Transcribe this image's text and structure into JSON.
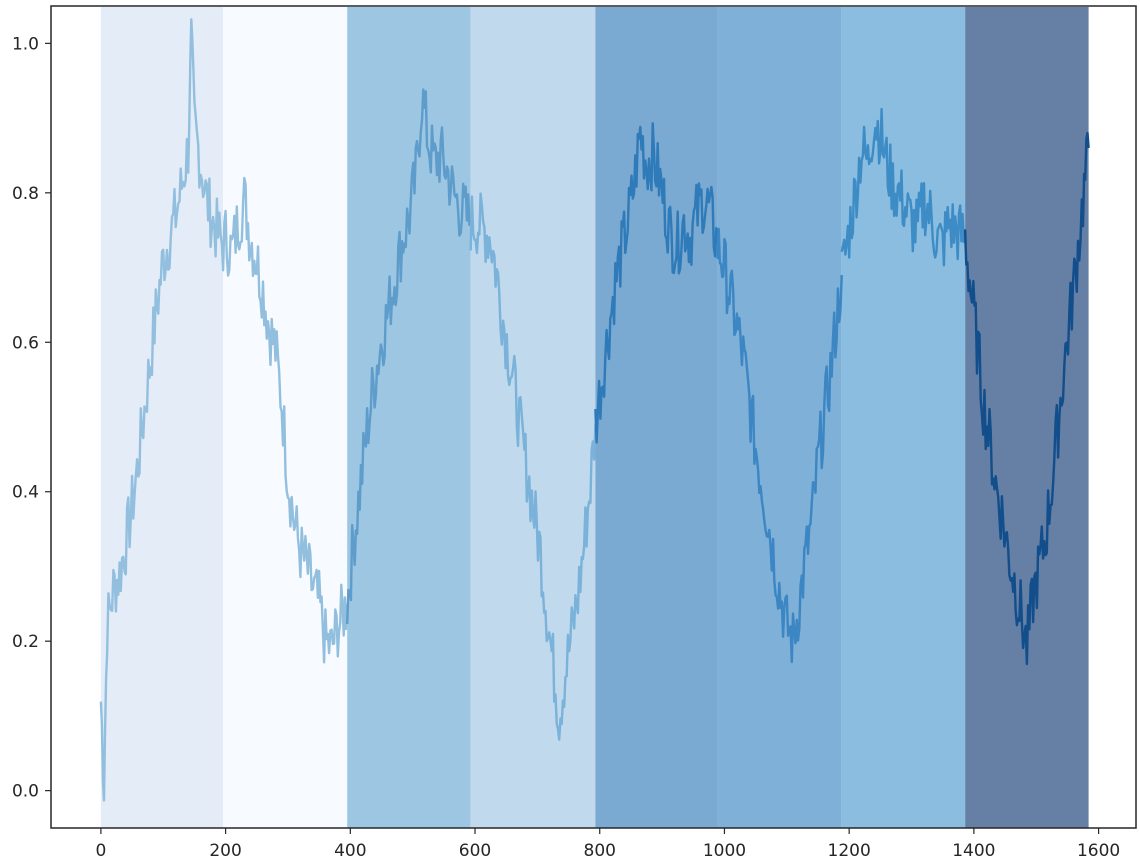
{
  "chart_data": {
    "type": "line",
    "title": "",
    "xlabel": "",
    "ylabel": "",
    "xlim": [
      -80,
      1660
    ],
    "ylim": [
      -0.05,
      1.05
    ],
    "grid": false,
    "legend": "none",
    "x_ticks": [
      0,
      200,
      400,
      600,
      800,
      1000,
      1200,
      1400,
      1600
    ],
    "x_tick_labels": [
      "0",
      "200",
      "400",
      "600",
      "800",
      "1000",
      "1200",
      "1400",
      "1600"
    ],
    "y_ticks": [
      0.0,
      0.2,
      0.4,
      0.6,
      0.8,
      1.0
    ],
    "y_tick_labels": [
      "0.0",
      "0.2",
      "0.4",
      "0.6",
      "0.8",
      "1.0"
    ],
    "bands": [
      {
        "x0": 0,
        "x1": 196,
        "color": "#e4ecf7"
      },
      {
        "x0": 196,
        "x1": 395,
        "color": "#f7fbff"
      },
      {
        "x0": 395,
        "x1": 593,
        "color": "#9cc6e2"
      },
      {
        "x0": 593,
        "x1": 793,
        "color": "#c0d9ed"
      },
      {
        "x0": 793,
        "x1": 989,
        "color": "#7aa9d1"
      },
      {
        "x0": 989,
        "x1": 1188,
        "color": "#7fb0d8"
      },
      {
        "x0": 1188,
        "x1": 1386,
        "color": "#8abde0"
      },
      {
        "x0": 1386,
        "x1": 1584,
        "color": "#667fa4"
      }
    ],
    "series": [
      {
        "color": "#93bfdf",
        "x": [
          0,
          5,
          10,
          20,
          30,
          40,
          50,
          60,
          70,
          80,
          90,
          100,
          110,
          120,
          130,
          140,
          145,
          150,
          160,
          170,
          180,
          190,
          196,
          200,
          210,
          220,
          230,
          240,
          250,
          260,
          270,
          280,
          290,
          300,
          310,
          320,
          330,
          340,
          350,
          360,
          370,
          380,
          395
        ],
        "y": [
          0.12,
          0.01,
          0.22,
          0.27,
          0.29,
          0.33,
          0.38,
          0.44,
          0.51,
          0.58,
          0.65,
          0.71,
          0.74,
          0.77,
          0.81,
          0.86,
          1.0,
          0.89,
          0.84,
          0.79,
          0.76,
          0.74,
          0.73,
          0.74,
          0.72,
          0.76,
          0.79,
          0.74,
          0.71,
          0.67,
          0.62,
          0.59,
          0.52,
          0.42,
          0.36,
          0.32,
          0.3,
          0.27,
          0.25,
          0.2,
          0.19,
          0.22,
          0.25
        ]
      },
      {
        "color": "#5e9ccb",
        "x": [
          395,
          405,
          415,
          425,
          435,
          445,
          455,
          465,
          475,
          485,
          495,
          505,
          515,
          525,
          535,
          545,
          555,
          565,
          575,
          585,
          593
        ],
        "y": [
          0.25,
          0.33,
          0.4,
          0.47,
          0.53,
          0.58,
          0.62,
          0.66,
          0.7,
          0.74,
          0.77,
          0.82,
          0.93,
          0.87,
          0.84,
          0.85,
          0.83,
          0.8,
          0.78,
          0.77,
          0.76
        ]
      },
      {
        "color": "#7ab2d9",
        "x": [
          593,
          605,
          615,
          625,
          635,
          645,
          655,
          665,
          675,
          685,
          695,
          705,
          715,
          725,
          735,
          745,
          755,
          765,
          775,
          785,
          793
        ],
        "y": [
          0.76,
          0.76,
          0.75,
          0.74,
          0.69,
          0.63,
          0.58,
          0.53,
          0.47,
          0.42,
          0.37,
          0.32,
          0.24,
          0.17,
          0.1,
          0.16,
          0.21,
          0.26,
          0.33,
          0.41,
          0.49
        ]
      },
      {
        "color": "#2f7ab9",
        "x": [
          793,
          805,
          815,
          825,
          835,
          845,
          855,
          865,
          875,
          885,
          895,
          905,
          915,
          925,
          935,
          945,
          955,
          965,
          975,
          989
        ],
        "y": [
          0.49,
          0.56,
          0.62,
          0.68,
          0.72,
          0.76,
          0.81,
          0.88,
          0.84,
          0.85,
          0.82,
          0.78,
          0.74,
          0.73,
          0.76,
          0.74,
          0.77,
          0.79,
          0.78,
          0.73
        ]
      },
      {
        "color": "#3b86c3",
        "x": [
          989,
          1000,
          1010,
          1020,
          1030,
          1040,
          1050,
          1060,
          1070,
          1080,
          1090,
          1100,
          1110,
          1120,
          1130,
          1140,
          1150,
          1160,
          1170,
          1180,
          1188
        ],
        "y": [
          0.73,
          0.7,
          0.66,
          0.62,
          0.58,
          0.52,
          0.46,
          0.41,
          0.36,
          0.31,
          0.26,
          0.22,
          0.2,
          0.25,
          0.31,
          0.36,
          0.44,
          0.5,
          0.56,
          0.63,
          0.69
        ]
      },
      {
        "color": "#3e8cc6",
        "x": [
          1188,
          1200,
          1210,
          1220,
          1230,
          1240,
          1250,
          1260,
          1270,
          1280,
          1290,
          1300,
          1310,
          1320,
          1330,
          1340,
          1350,
          1360,
          1370,
          1386
        ],
        "y": [
          0.69,
          0.75,
          0.8,
          0.86,
          0.84,
          0.9,
          0.88,
          0.84,
          0.81,
          0.8,
          0.78,
          0.76,
          0.75,
          0.79,
          0.77,
          0.74,
          0.73,
          0.76,
          0.75,
          0.74
        ]
      },
      {
        "color": "#114e8b",
        "x": [
          1386,
          1395,
          1405,
          1415,
          1425,
          1435,
          1445,
          1455,
          1465,
          1475,
          1485,
          1495,
          1505,
          1515,
          1525,
          1535,
          1545,
          1555,
          1565,
          1575,
          1584
        ],
        "y": [
          0.74,
          0.67,
          0.6,
          0.52,
          0.47,
          0.41,
          0.37,
          0.32,
          0.28,
          0.24,
          0.19,
          0.26,
          0.3,
          0.34,
          0.41,
          0.49,
          0.57,
          0.64,
          0.71,
          0.79,
          0.86
        ]
      }
    ]
  }
}
